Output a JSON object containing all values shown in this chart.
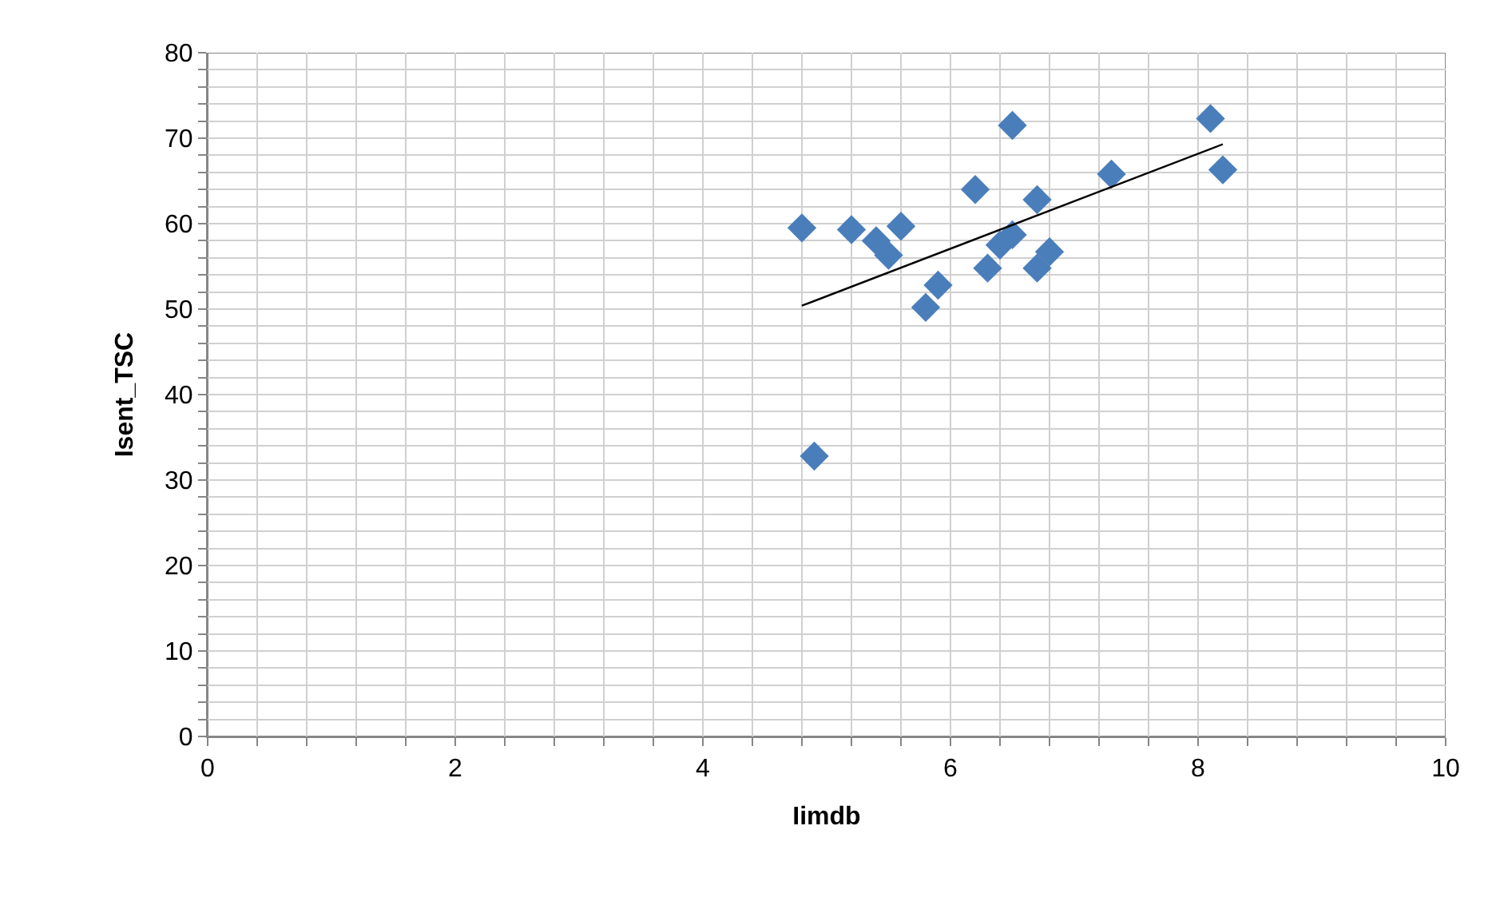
{
  "chart_data": {
    "type": "scatter",
    "xlabel": "Iimdb",
    "ylabel": "Isent_TSC",
    "marker": "diamond",
    "grid": true,
    "legend": false,
    "xlim": [
      0,
      10
    ],
    "ylim": [
      0,
      80
    ],
    "xticks": [
      0,
      {
        "value": 0.4,
        "label": null
      },
      {
        "value": 0.8,
        "label": null
      },
      {
        "value": 1.2,
        "label": null
      },
      {
        "value": 1.6,
        "label": null
      },
      2,
      {
        "value": 2.4,
        "label": null
      },
      {
        "value": 2.8,
        "label": null
      },
      {
        "value": 3.2,
        "label": null
      },
      {
        "value": 3.6,
        "label": null
      },
      4,
      {
        "value": 4.4,
        "label": null
      },
      {
        "value": 4.8,
        "label": null
      },
      {
        "value": 5.2,
        "label": null
      },
      {
        "value": 5.6,
        "label": null
      },
      6,
      {
        "value": 6.4,
        "label": null
      },
      {
        "value": 6.8,
        "label": null
      },
      {
        "value": 7.2,
        "label": null
      },
      {
        "value": 7.6,
        "label": null
      },
      8,
      {
        "value": 8.4,
        "label": null
      },
      {
        "value": 8.8,
        "label": null
      },
      {
        "value": 9.2,
        "label": null
      },
      {
        "value": 9.6,
        "label": null
      },
      10
    ],
    "yticks": [
      0,
      {
        "value": 2,
        "label": null
      },
      {
        "value": 4,
        "label": null
      },
      {
        "value": 6,
        "label": null
      },
      {
        "value": 8,
        "label": null
      },
      10,
      {
        "value": 12,
        "label": null
      },
      {
        "value": 14,
        "label": null
      },
      {
        "value": 16,
        "label": null
      },
      {
        "value": 18,
        "label": null
      },
      20,
      {
        "value": 22,
        "label": null
      },
      {
        "value": 24,
        "label": null
      },
      {
        "value": 26,
        "label": null
      },
      {
        "value": 28,
        "label": null
      },
      30,
      {
        "value": 32,
        "label": null
      },
      {
        "value": 34,
        "label": null
      },
      {
        "value": 36,
        "label": null
      },
      {
        "value": 38,
        "label": null
      },
      40,
      {
        "value": 42,
        "label": null
      },
      {
        "value": 44,
        "label": null
      },
      {
        "value": 46,
        "label": null
      },
      {
        "value": 48,
        "label": null
      },
      50,
      {
        "value": 52,
        "label": null
      },
      {
        "value": 54,
        "label": null
      },
      {
        "value": 56,
        "label": null
      },
      {
        "value": 58,
        "label": null
      },
      60,
      {
        "value": 62,
        "label": null
      },
      {
        "value": 64,
        "label": null
      },
      {
        "value": 66,
        "label": null
      },
      {
        "value": 68,
        "label": null
      },
      70,
      {
        "value": 72,
        "label": null
      },
      {
        "value": 74,
        "label": null
      },
      {
        "value": 76,
        "label": null
      },
      {
        "value": 78,
        "label": null
      },
      80
    ],
    "series": [
      {
        "color": "#4a7ebb",
        "x": [
          4.8,
          4.9,
          5.2,
          5.4,
          5.5,
          5.6,
          5.8,
          5.9,
          6.2,
          6.3,
          6.4,
          6.5,
          6.5,
          6.7,
          6.7,
          6.8,
          7.3,
          8.1,
          8.2
        ],
        "values": [
          59.5,
          32.8,
          59.3,
          58.0,
          56.3,
          59.7,
          50.2,
          52.8,
          64.0,
          54.8,
          57.5,
          58.7,
          71.5,
          62.8,
          54.8,
          56.7,
          65.8,
          72.3,
          66.3
        ]
      },
      {
        "type": "line",
        "color": "#000000",
        "marker": "none",
        "x": [
          4.8,
          8.2
        ],
        "values": [
          50.4,
          69.3
        ]
      }
    ]
  }
}
